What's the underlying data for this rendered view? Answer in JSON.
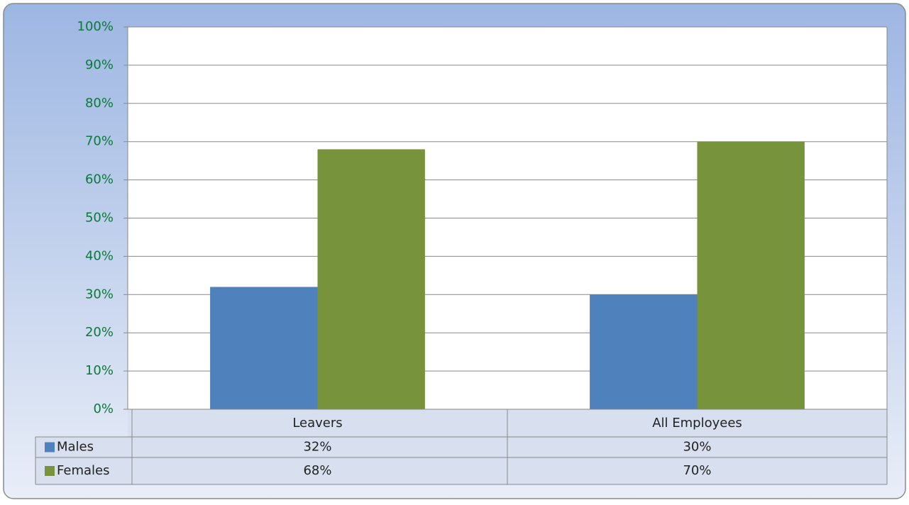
{
  "chart_data": {
    "type": "bar",
    "categories": [
      "Leavers",
      "All Employees"
    ],
    "series": [
      {
        "name": "Males",
        "color": "#4f81bd",
        "values": [
          32,
          30
        ],
        "value_labels": [
          "32%",
          "30%"
        ]
      },
      {
        "name": "Females",
        "color": "#77933c",
        "values": [
          68,
          70
        ],
        "value_labels": [
          "68%",
          "70%"
        ]
      }
    ],
    "ylim": [
      0,
      100
    ],
    "yticks": [
      {
        "value": 0,
        "label": "0%"
      },
      {
        "value": 10,
        "label": "10%"
      },
      {
        "value": 20,
        "label": "20%"
      },
      {
        "value": 30,
        "label": "30%"
      },
      {
        "value": 40,
        "label": "40%"
      },
      {
        "value": 50,
        "label": "50%"
      },
      {
        "value": 60,
        "label": "60%"
      },
      {
        "value": 70,
        "label": "70%"
      },
      {
        "value": 80,
        "label": "80%"
      },
      {
        "value": 90,
        "label": "90%"
      },
      {
        "value": 100,
        "label": "100%"
      }
    ],
    "grid": true
  }
}
